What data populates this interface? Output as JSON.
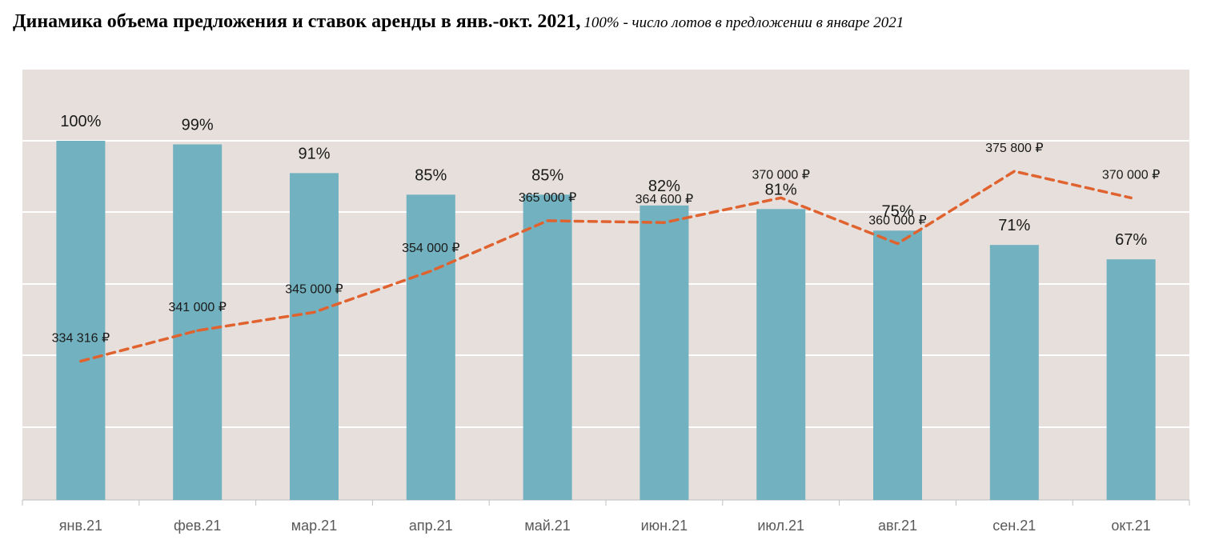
{
  "title": {
    "main": "Динамика объема предложения и ставок аренды в янв.-окт. 2021,",
    "sub": "100% - число лотов в предложении в январе 2021"
  },
  "colors": {
    "plot_bg": "#e6dfdb",
    "bar": "#72b1bf",
    "line": "#e0622f",
    "grid": "#ffffff",
    "axis": "#bfbfbf"
  },
  "chart_data": {
    "type": "bar",
    "categories": [
      "янв.21",
      "фев.21",
      "мар.21",
      "апр.21",
      "май.21",
      "июн.21",
      "июл.21",
      "авг.21",
      "сен.21",
      "окт.21"
    ],
    "series": [
      {
        "type": "bar",
        "values": [
          100,
          99,
          91,
          85,
          85,
          82,
          81,
          75,
          71,
          67
        ],
        "labels": [
          "100%",
          "99%",
          "91%",
          "85%",
          "85%",
          "82%",
          "81%",
          "75%",
          "71%",
          "67%"
        ],
        "ylim": [
          0,
          120
        ]
      },
      {
        "type": "line",
        "style": "dashed",
        "values": [
          334316,
          341000,
          345000,
          354000,
          365000,
          364600,
          370000,
          360000,
          375800,
          370000
        ],
        "labels": [
          "334 316 ₽",
          "341 000 ₽",
          "345 000 ₽",
          "354 000 ₽",
          "365 000 ₽",
          "364 600 ₽",
          "370 000 ₽",
          "360 000 ₽",
          "375 800 ₽",
          "370 000 ₽"
        ],
        "ylim": [
          304000,
          398000
        ]
      }
    ],
    "grid": true,
    "legend": "none"
  }
}
